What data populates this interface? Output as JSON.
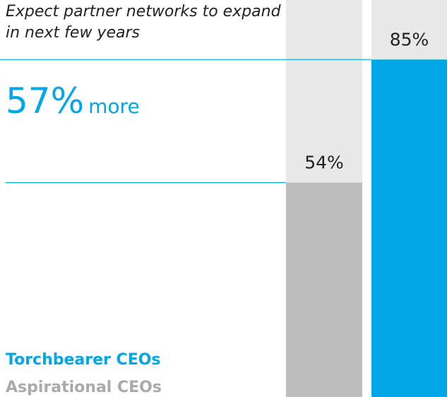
{
  "chart_data": {
    "type": "bar",
    "title": "Expect partner networks to expand in next few years",
    "annotations": [
      "57%",
      "more"
    ],
    "series": [
      {
        "name": "Aspirational CEOs",
        "color": "#bebebe",
        "values": [
          54
        ],
        "value_labels": [
          "54%"
        ]
      },
      {
        "name": "Torchbearer CEOs",
        "color": "#00a6e5",
        "values": [
          85
        ],
        "value_labels": [
          "85%"
        ]
      }
    ],
    "track_color": "#e8e8e8",
    "ylim": [
      0,
      100
    ]
  }
}
